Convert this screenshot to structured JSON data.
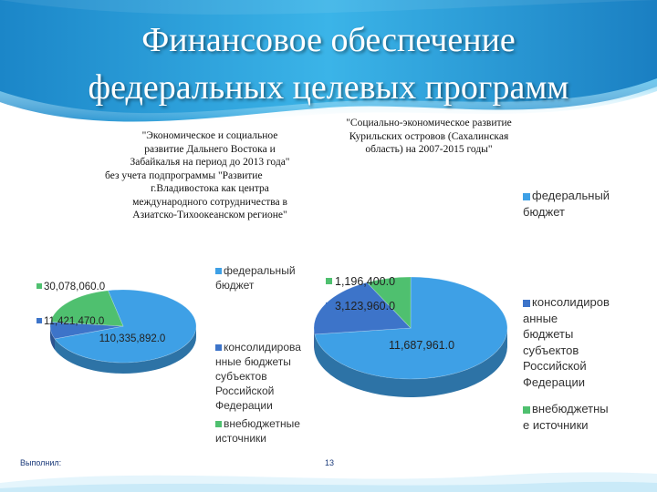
{
  "title_line1": "Финансовое обеспечение",
  "title_line2": "федеральных целевых программ",
  "colors": {
    "federal": "#3ea0e6",
    "regional": "#3d74c9",
    "extra": "#4fc06f"
  },
  "chart_data": [
    {
      "type": "pie",
      "title": [
        "\"Экономическое и социальное",
        "развитие Дальнего Востока и",
        "Забайкалья на период до 2013 года\"",
        "без учета подпрограммы \"Развитие",
        "г.Владивостока как центра",
        "международного сотрудничества в",
        "Азиатско-Тихоокеанском регионе\""
      ],
      "legend": [
        "федеральный бюджет",
        "консолидированные бюджеты субъектов Российской Федерации",
        "внебюджетные источники"
      ],
      "legend_lines": [
        [
          "федеральный",
          "бюджет"
        ],
        [
          "консолидирова",
          "нные бюджеты",
          "субъектов",
          "Российской",
          "Федерации"
        ],
        [
          "внебюджетные",
          "источники"
        ]
      ],
      "series": [
        {
          "values": [
            110335892.0,
            11421470.0,
            30078060.0
          ]
        }
      ],
      "labels": [
        "110,335,892.0",
        "11,421,470.0",
        "30,078,060.0"
      ]
    },
    {
      "type": "pie",
      "title": [
        "\"Социально-экономическое развитие",
        "Курильских островов (Сахалинская",
        "область) на 2007-2015 годы\""
      ],
      "legend": [
        "федеральный бюджет",
        "консолидированные бюджеты субъектов Российской Федерации",
        "внебюджетные источники"
      ],
      "legend_lines": [
        [
          "федеральный",
          "бюджет"
        ],
        [
          "консолидиров",
          "анные",
          "бюджеты",
          "субъектов",
          "Российской",
          "Федерации"
        ],
        [
          "внебюджетны",
          "е источники"
        ]
      ],
      "series": [
        {
          "values": [
            11687961.0,
            3123960.0,
            1196400.0
          ]
        }
      ],
      "labels": [
        "11,687,961.0",
        "3,123,960.0",
        "1,196,400.0"
      ]
    }
  ],
  "footer": {
    "author": "Выполнил:",
    "page": "13"
  }
}
